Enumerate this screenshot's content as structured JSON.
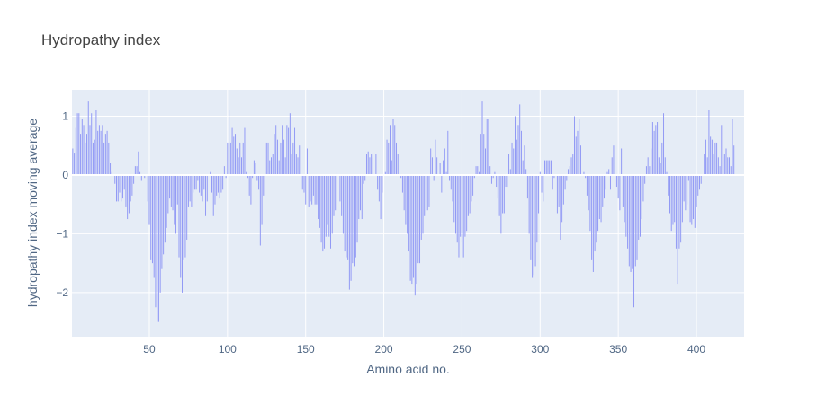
{
  "chart_data": {
    "type": "bar",
    "title": "Hydropathy index",
    "xlabel": "Amino acid no.",
    "ylabel": "hydropathy index moving average",
    "xlim": [
      1,
      430
    ],
    "ylim": [
      -2.75,
      1.45
    ],
    "x_ticks": [
      50,
      100,
      150,
      200,
      250,
      300,
      350,
      400
    ],
    "y_ticks": [
      -2,
      -1,
      0,
      1
    ],
    "y_tick_labels": [
      "−2",
      "−1",
      "0",
      "1"
    ],
    "grid": true,
    "bar_color": "#8f97f5",
    "plot_background": "#e5ecf6",
    "values": [
      0.45,
      0.38,
      0.8,
      1.05,
      1.05,
      0.7,
      0.95,
      0.85,
      0.55,
      0.7,
      1.25,
      0.85,
      1.05,
      0.55,
      0.6,
      1.1,
      0.75,
      0.85,
      0.75,
      0.85,
      0.55,
      0.7,
      0.75,
      0.55,
      0.2,
      0.05,
      0.0,
      -0.15,
      -0.45,
      -0.45,
      -0.3,
      -0.45,
      -0.4,
      -0.25,
      -0.55,
      -0.75,
      -0.65,
      -0.45,
      -0.35,
      -0.15,
      0.15,
      0.15,
      0.4,
      0.05,
      -0.1,
      0.0,
      -0.05,
      0.0,
      -0.45,
      -0.85,
      -1.45,
      -1.5,
      -1.75,
      -2.25,
      -2.5,
      -2.5,
      -2.0,
      -1.6,
      -1.35,
      -1.15,
      -0.9,
      -0.65,
      -0.4,
      -0.55,
      -0.6,
      -0.85,
      -1.0,
      -0.5,
      -1.4,
      -1.75,
      -2.0,
      -1.45,
      -1.4,
      -1.1,
      -0.55,
      -0.45,
      -0.55,
      -0.3,
      -0.25,
      -0.25,
      -0.1,
      -0.3,
      -0.35,
      -0.45,
      -0.25,
      -0.7,
      -0.45,
      0.0,
      0.05,
      -0.3,
      -0.7,
      -0.5,
      -0.35,
      -0.3,
      -0.4,
      -0.3,
      -0.25,
      0.15,
      -0.05,
      0.55,
      1.1,
      0.55,
      0.8,
      0.65,
      0.7,
      0.45,
      0.3,
      0.55,
      0.3,
      0.55,
      0.8,
      0.05,
      -0.05,
      -0.35,
      -0.5,
      -0.05,
      0.25,
      0.2,
      -0.1,
      -0.25,
      -1.2,
      -0.85,
      -0.35,
      0.05,
      0.55,
      0.55,
      0.25,
      0.3,
      0.35,
      0.7,
      0.85,
      0.6,
      0.25,
      0.55,
      0.85,
      0.6,
      0.3,
      0.85,
      0.8,
      1.05,
      0.35,
      0.55,
      0.8,
      0.35,
      0.3,
      0.5,
      0.25,
      -0.25,
      -0.3,
      -0.5,
      0.45,
      -0.55,
      -0.45,
      -0.5,
      -0.35,
      -0.5,
      -0.5,
      -0.75,
      -0.9,
      -1.15,
      -1.3,
      -1.25,
      -1.05,
      -0.85,
      -1.05,
      -1.25,
      -1.0,
      -0.7,
      -0.6,
      0.05,
      0.0,
      -0.45,
      -0.7,
      -1.0,
      -1.3,
      -1.4,
      -1.45,
      -1.95,
      -1.8,
      -1.5,
      -1.55,
      -1.4,
      -1.15,
      -0.75,
      -0.6,
      -0.75,
      -0.15,
      -0.1,
      0.35,
      0.4,
      0.3,
      0.35,
      0.3,
      0.0,
      0.35,
      -0.25,
      -0.45,
      -0.75,
      -0.3,
      0.0,
      0.05,
      0.6,
      0.55,
      0.85,
      0.25,
      0.95,
      0.85,
      0.55,
      0.35,
      0.0,
      -0.05,
      -0.3,
      -0.6,
      -0.85,
      -1.0,
      -1.3,
      -1.8,
      -1.85,
      -1.75,
      -2.05,
      -1.85,
      -1.5,
      -1.5,
      -1.1,
      -1.0,
      -0.7,
      -0.5,
      -0.6,
      -0.55,
      0.45,
      0.3,
      -0.1,
      0.6,
      0.3,
      0.0,
      0.2,
      -0.3,
      0.25,
      0.45,
      0.05,
      0.75,
      -0.1,
      -0.25,
      -0.45,
      -0.8,
      -1.0,
      -1.15,
      -1.4,
      -1.05,
      -1.15,
      -1.4,
      -1.05,
      -0.95,
      -0.7,
      -0.65,
      -0.45,
      -0.35,
      -0.05,
      0.15,
      0.15,
      0.05,
      0.7,
      1.25,
      0.7,
      0.45,
      0.95,
      0.95,
      0.15,
      -0.15,
      -0.05,
      0.05,
      -0.2,
      -0.4,
      -0.7,
      -1.0,
      -0.65,
      -0.65,
      -0.2,
      -0.2,
      0.35,
      0.1,
      0.55,
      0.45,
      1.0,
      0.6,
      0.85,
      1.2,
      0.75,
      0.25,
      0.5,
      0.1,
      -0.4,
      -1.0,
      -1.45,
      -1.75,
      -1.7,
      -1.55,
      -1.15,
      -0.65,
      0.05,
      -0.3,
      -0.45,
      0.25,
      0.25,
      0.25,
      0.25,
      0.25,
      -0.25,
      -0.05,
      0.0,
      -0.65,
      -0.55,
      -1.1,
      -0.8,
      -0.5,
      -0.25,
      -0.1,
      0.1,
      0.15,
      0.3,
      0.35,
      1.0,
      0.65,
      0.75,
      0.95,
      0.5,
      0.0,
      0.05,
      -0.05,
      -0.35,
      -0.6,
      -0.95,
      -1.45,
      -1.65,
      -1.3,
      -1.15,
      -0.95,
      -0.75,
      -0.8,
      -0.55,
      -0.4,
      -0.25,
      0.05,
      0.1,
      -0.25,
      0.3,
      0.5,
      0.0,
      -0.2,
      -0.4,
      -0.6,
      0.45,
      -0.55,
      -0.8,
      -1.05,
      -1.25,
      -1.55,
      -1.65,
      -1.6,
      -2.25,
      -1.55,
      -1.45,
      -1.1,
      -1.05,
      -0.75,
      -0.45,
      -0.15,
      0.15,
      0.3,
      0.15,
      0.45,
      0.9,
      0.75,
      0.85,
      0.9,
      0.3,
      0.2,
      0.55,
      1.05,
      0.3,
      0.05,
      -0.35,
      -0.65,
      -0.95,
      -0.85,
      -0.8,
      -1.25,
      -1.85,
      -1.25,
      -1.15,
      -0.8,
      -0.45,
      -0.6,
      -0.5,
      -0.1,
      -0.8,
      -0.85,
      -0.75,
      -0.9,
      -0.55,
      -0.35,
      -0.25,
      -0.15,
      0.0,
      0.35,
      0.6,
      0.3,
      1.1,
      0.65,
      0.6,
      0.35,
      0.55,
      0.55,
      0.3,
      0.15,
      0.85,
      0.3,
      0.35,
      0.45,
      0.3,
      0.3,
      0.15,
      0.95,
      0.5
    ]
  }
}
